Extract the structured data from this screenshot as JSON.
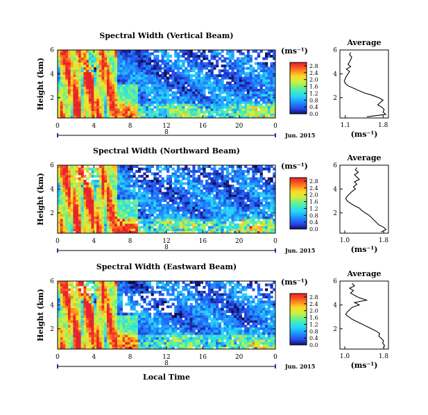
{
  "chart_data": [
    {
      "type": "heatmap",
      "title": "Spectral Width (Vertical Beam)",
      "ylabel": "Height (km)",
      "xlabel": "",
      "x_ticks": [
        "0",
        "4",
        "8",
        "12",
        "16",
        "20",
        "0"
      ],
      "y_ticks": [
        "2",
        "4",
        "6"
      ],
      "xlim": [
        0,
        24
      ],
      "ylim": [
        0.3,
        6
      ],
      "date_day": "8",
      "date_label": "Jun. 2015",
      "colorbar": {
        "unit": "(ms⁻¹)",
        "ticks": [
          "0.0",
          "0.4",
          "0.8",
          "1.2",
          "1.6",
          "2.0",
          "2.4",
          "2.8"
        ],
        "range": [
          0,
          3.0
        ]
      },
      "average_profile": {
        "title": "Average",
        "xlabel": "(ms⁻¹)",
        "x_ticks": [
          "1.1",
          "1.8"
        ],
        "xlim": [
          1.0,
          1.9
        ],
        "y_ticks": [
          "2",
          "4",
          "6"
        ],
        "ylim": [
          0.3,
          6
        ],
        "height": [
          0.4,
          0.6,
          0.8,
          1.0,
          1.2,
          1.4,
          1.6,
          1.8,
          2.0,
          2.2,
          2.4,
          2.6,
          2.8,
          3.0,
          3.2,
          3.4,
          3.6,
          3.8,
          4.0,
          4.2,
          4.4,
          4.6,
          4.8,
          5.0,
          5.2,
          5.4,
          5.6,
          5.8
        ],
        "width": [
          1.5,
          1.85,
          1.8,
          1.82,
          1.78,
          1.7,
          1.75,
          1.8,
          1.72,
          1.6,
          1.45,
          1.35,
          1.25,
          1.15,
          1.1,
          1.08,
          1.1,
          1.12,
          1.15,
          1.18,
          1.12,
          1.2,
          1.15,
          1.18,
          1.2,
          1.22,
          1.18,
          1.2
        ]
      }
    },
    {
      "type": "heatmap",
      "title": "Spectral Width (Northward Beam)",
      "ylabel": "Height (km)",
      "xlabel": "",
      "x_ticks": [
        "0",
        "4",
        "8",
        "12",
        "16",
        "20",
        "0"
      ],
      "y_ticks": [
        "2",
        "4",
        "6"
      ],
      "xlim": [
        0,
        24
      ],
      "ylim": [
        0.3,
        6
      ],
      "date_day": "8",
      "date_label": "Jun. 2015",
      "colorbar": {
        "unit": "(ms⁻¹)",
        "ticks": [
          "0.0",
          "0.4",
          "0.8",
          "1.2",
          "1.6",
          "2.0",
          "2.4",
          "2.8"
        ],
        "range": [
          0,
          3.0
        ]
      },
      "average_profile": {
        "title": "Average",
        "xlabel": "(ms⁻¹)",
        "x_ticks": [
          "1.0",
          "1.8"
        ],
        "xlim": [
          0.9,
          1.9
        ],
        "y_ticks": [
          "2",
          "4",
          "6"
        ],
        "ylim": [
          0.3,
          6
        ],
        "height": [
          0.4,
          0.6,
          0.8,
          1.0,
          1.2,
          1.4,
          1.6,
          1.8,
          2.0,
          2.2,
          2.4,
          2.6,
          2.8,
          3.0,
          3.2,
          3.4,
          3.6,
          3.8,
          4.0,
          4.2,
          4.4,
          4.6,
          4.8,
          5.0,
          5.2,
          5.4,
          5.6,
          5.8
        ],
        "width": [
          1.75,
          1.85,
          1.8,
          1.7,
          1.65,
          1.6,
          1.55,
          1.5,
          1.42,
          1.35,
          1.3,
          1.2,
          1.12,
          1.05,
          1.02,
          1.05,
          1.1,
          1.15,
          1.22,
          1.18,
          1.25,
          1.2,
          1.3,
          1.25,
          1.2,
          1.28,
          1.22,
          1.25
        ]
      }
    },
    {
      "type": "heatmap",
      "title": "Spectral Width (Eastward Beam)",
      "ylabel": "Height (km)",
      "xlabel": "Local Time",
      "x_ticks": [
        "0",
        "4",
        "8",
        "12",
        "16",
        "20",
        "0"
      ],
      "y_ticks": [
        "2",
        "4",
        "6"
      ],
      "xlim": [
        0,
        24
      ],
      "ylim": [
        0.3,
        6
      ],
      "date_day": "8",
      "date_label": "Jun. 2015",
      "colorbar": {
        "unit": "(ms⁻¹)",
        "ticks": [
          "0.0",
          "0.4",
          "0.8",
          "1.2",
          "1.6",
          "2.0",
          "2.4",
          "2.8"
        ],
        "range": [
          0,
          3.0
        ]
      },
      "average_profile": {
        "title": "Average",
        "xlabel": "(ms⁻¹)",
        "x_ticks": [
          "1.0",
          "1.8"
        ],
        "xlim": [
          0.9,
          1.9
        ],
        "y_ticks": [
          "2",
          "4",
          "6"
        ],
        "ylim": [
          0.3,
          6
        ],
        "height": [
          0.4,
          0.6,
          0.8,
          1.0,
          1.2,
          1.4,
          1.6,
          1.8,
          2.0,
          2.2,
          2.4,
          2.6,
          2.8,
          3.0,
          3.2,
          3.4,
          3.6,
          3.8,
          4.0,
          4.2,
          4.4,
          4.6,
          4.8,
          5.0,
          5.2,
          5.4,
          5.6,
          5.8
        ],
        "width": [
          1.8,
          1.82,
          1.78,
          1.8,
          1.75,
          1.7,
          1.72,
          1.65,
          1.55,
          1.45,
          1.35,
          1.25,
          1.15,
          1.08,
          1.02,
          1.05,
          1.1,
          1.15,
          1.3,
          1.2,
          1.45,
          1.3,
          1.2,
          1.12,
          1.18,
          1.1,
          1.2,
          1.15
        ]
      }
    }
  ]
}
